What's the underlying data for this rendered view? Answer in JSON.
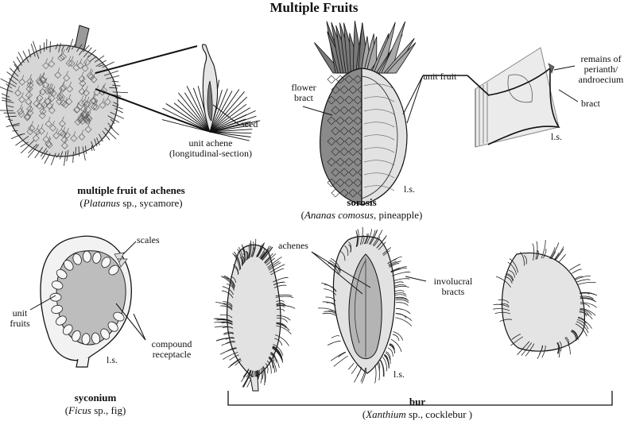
{
  "title": "Multiple Fruits",
  "labels": {
    "seed": "seed",
    "unit_achene_l1": "unit achene",
    "unit_achene_l2": "(longitudinal-section)",
    "flower_bract_l1": "flower",
    "flower_bract_l2": "bract",
    "unit_fruit": "unit fruit",
    "remains_l1": "remains of",
    "remains_l2": "perianth/",
    "remains_l3": "androecium",
    "bract": "bract",
    "ls_pineapple": "l.s.",
    "ls_pineapple_detail": "l.s.",
    "scales": "scales",
    "unit_fruits_l1": "unit",
    "unit_fruits_l2": "fruits",
    "ls_fig": "l.s.",
    "compound_l1": "compound",
    "compound_l2": "receptacle",
    "achenes": "achenes",
    "involucral_l1": "involucral",
    "involucral_l2": "bracts",
    "ls_bur": "l.s."
  },
  "captions": {
    "achenes": {
      "name": "multiple fruit of achenes",
      "genus": "Platanus",
      "rest": " sp., sycamore)"
    },
    "sorosis": {
      "name": "sorosis",
      "genus": "Ananas comosus",
      "rest": ", pineapple)"
    },
    "syconium": {
      "name": "syconium",
      "genus": "Ficus",
      "rest": " sp., fig)"
    },
    "bur": {
      "name": "bur",
      "genus": "Xanthium",
      "rest": " sp., cocklebur )"
    }
  },
  "colors": {
    "ink": "#111111",
    "fruit_fill": "#d9d9d9",
    "dark_fill": "#8c8c8c",
    "crown_fill": "#7a7a7a",
    "interior_fill": "#bdbdbd"
  }
}
